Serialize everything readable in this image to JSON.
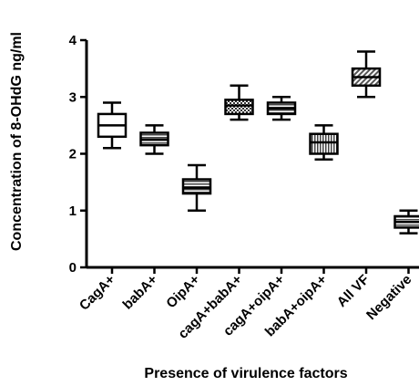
{
  "chart_data": {
    "type": "box",
    "ylabel": "Concentration of 8-OHdG ng/ml",
    "xlabel": "Presence of virulence factors",
    "ylim": [
      0,
      4
    ],
    "yticks": [
      "0",
      "1",
      "2",
      "3",
      "4"
    ],
    "grid": false,
    "categories": [
      "CagA+",
      "babA+",
      "OipA+",
      "cagA+babA+",
      "cagA+oipA+",
      "babA+oipA+",
      "All VF",
      "Negative"
    ],
    "boxes": [
      {
        "min": 2.1,
        "q1": 2.3,
        "median": 2.5,
        "q3": 2.7,
        "max": 2.9,
        "pattern": "white"
      },
      {
        "min": 2.0,
        "q1": 2.15,
        "median": 2.25,
        "q3": 2.37,
        "max": 2.5,
        "pattern": "hstripe"
      },
      {
        "min": 1.0,
        "q1": 1.3,
        "median": 1.4,
        "q3": 1.55,
        "max": 1.8,
        "pattern": "hstripe"
      },
      {
        "min": 2.6,
        "q1": 2.7,
        "median": 2.85,
        "q3": 2.95,
        "max": 3.2,
        "pattern": "checker"
      },
      {
        "min": 2.6,
        "q1": 2.7,
        "median": 2.8,
        "q3": 2.9,
        "max": 3.0,
        "pattern": "hstripe"
      },
      {
        "min": 1.9,
        "q1": 2.0,
        "median": 2.2,
        "q3": 2.35,
        "max": 2.5,
        "pattern": "vstripe"
      },
      {
        "min": 3.0,
        "q1": 3.2,
        "median": 3.35,
        "q3": 3.5,
        "max": 3.8,
        "pattern": "diag"
      },
      {
        "min": 0.6,
        "q1": 0.7,
        "median": 0.8,
        "q3": 0.9,
        "max": 1.0,
        "pattern": "hstripe"
      }
    ]
  }
}
